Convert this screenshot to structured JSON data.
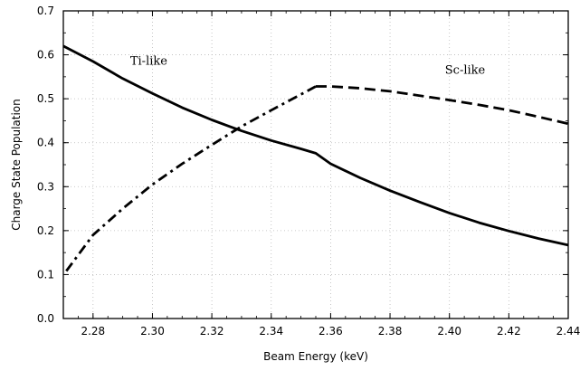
{
  "chart_data": {
    "type": "line",
    "xlabel": "Beam Energy (keV)",
    "ylabel": "Charge State Population",
    "xlim": [
      2.27,
      2.44
    ],
    "ylim": [
      0.0,
      0.7
    ],
    "x_ticks": [
      2.28,
      2.3,
      2.32,
      2.34,
      2.36,
      2.38,
      2.4,
      2.42,
      2.44
    ],
    "x_tick_labels": [
      "2.28",
      "2.30",
      "2.32",
      "2.34",
      "2.36",
      "2.38",
      "2.40",
      "2.42",
      "2.44"
    ],
    "y_ticks": [
      0.0,
      0.1,
      0.2,
      0.3,
      0.4,
      0.5,
      0.6,
      0.7
    ],
    "y_tick_labels": [
      "0.0",
      "0.1",
      "0.2",
      "0.3",
      "0.4",
      "0.5",
      "0.6",
      "0.7"
    ],
    "grid": true,
    "series": [
      {
        "name": "Ti-like",
        "style": "solid",
        "color": "#000000",
        "points": [
          [
            2.27,
            0.62
          ],
          [
            2.28,
            0.585
          ],
          [
            2.29,
            0.546
          ],
          [
            2.3,
            0.512
          ],
          [
            2.31,
            0.48
          ],
          [
            2.32,
            0.452
          ],
          [
            2.33,
            0.427
          ],
          [
            2.34,
            0.405
          ],
          [
            2.35,
            0.386
          ],
          [
            2.355,
            0.376
          ],
          [
            2.36,
            0.352
          ],
          [
            2.37,
            0.32
          ],
          [
            2.38,
            0.291
          ],
          [
            2.39,
            0.265
          ],
          [
            2.4,
            0.24
          ],
          [
            2.41,
            0.218
          ],
          [
            2.42,
            0.199
          ],
          [
            2.43,
            0.182
          ],
          [
            2.44,
            0.167
          ]
        ]
      },
      {
        "name": "Sc-like",
        "style": "dash-dot then dashed",
        "color": "#000000",
        "points": [
          [
            2.271,
            0.108
          ],
          [
            2.28,
            0.19
          ],
          [
            2.29,
            0.25
          ],
          [
            2.3,
            0.305
          ],
          [
            2.31,
            0.352
          ],
          [
            2.32,
            0.395
          ],
          [
            2.33,
            0.437
          ],
          [
            2.34,
            0.474
          ],
          [
            2.35,
            0.51
          ],
          [
            2.355,
            0.528
          ],
          [
            2.36,
            0.528
          ],
          [
            2.37,
            0.524
          ],
          [
            2.38,
            0.517
          ],
          [
            2.39,
            0.507
          ],
          [
            2.4,
            0.497
          ],
          [
            2.41,
            0.486
          ],
          [
            2.42,
            0.474
          ],
          [
            2.43,
            0.459
          ],
          [
            2.44,
            0.443
          ]
        ],
        "dashdot_until": 2.355
      }
    ]
  }
}
